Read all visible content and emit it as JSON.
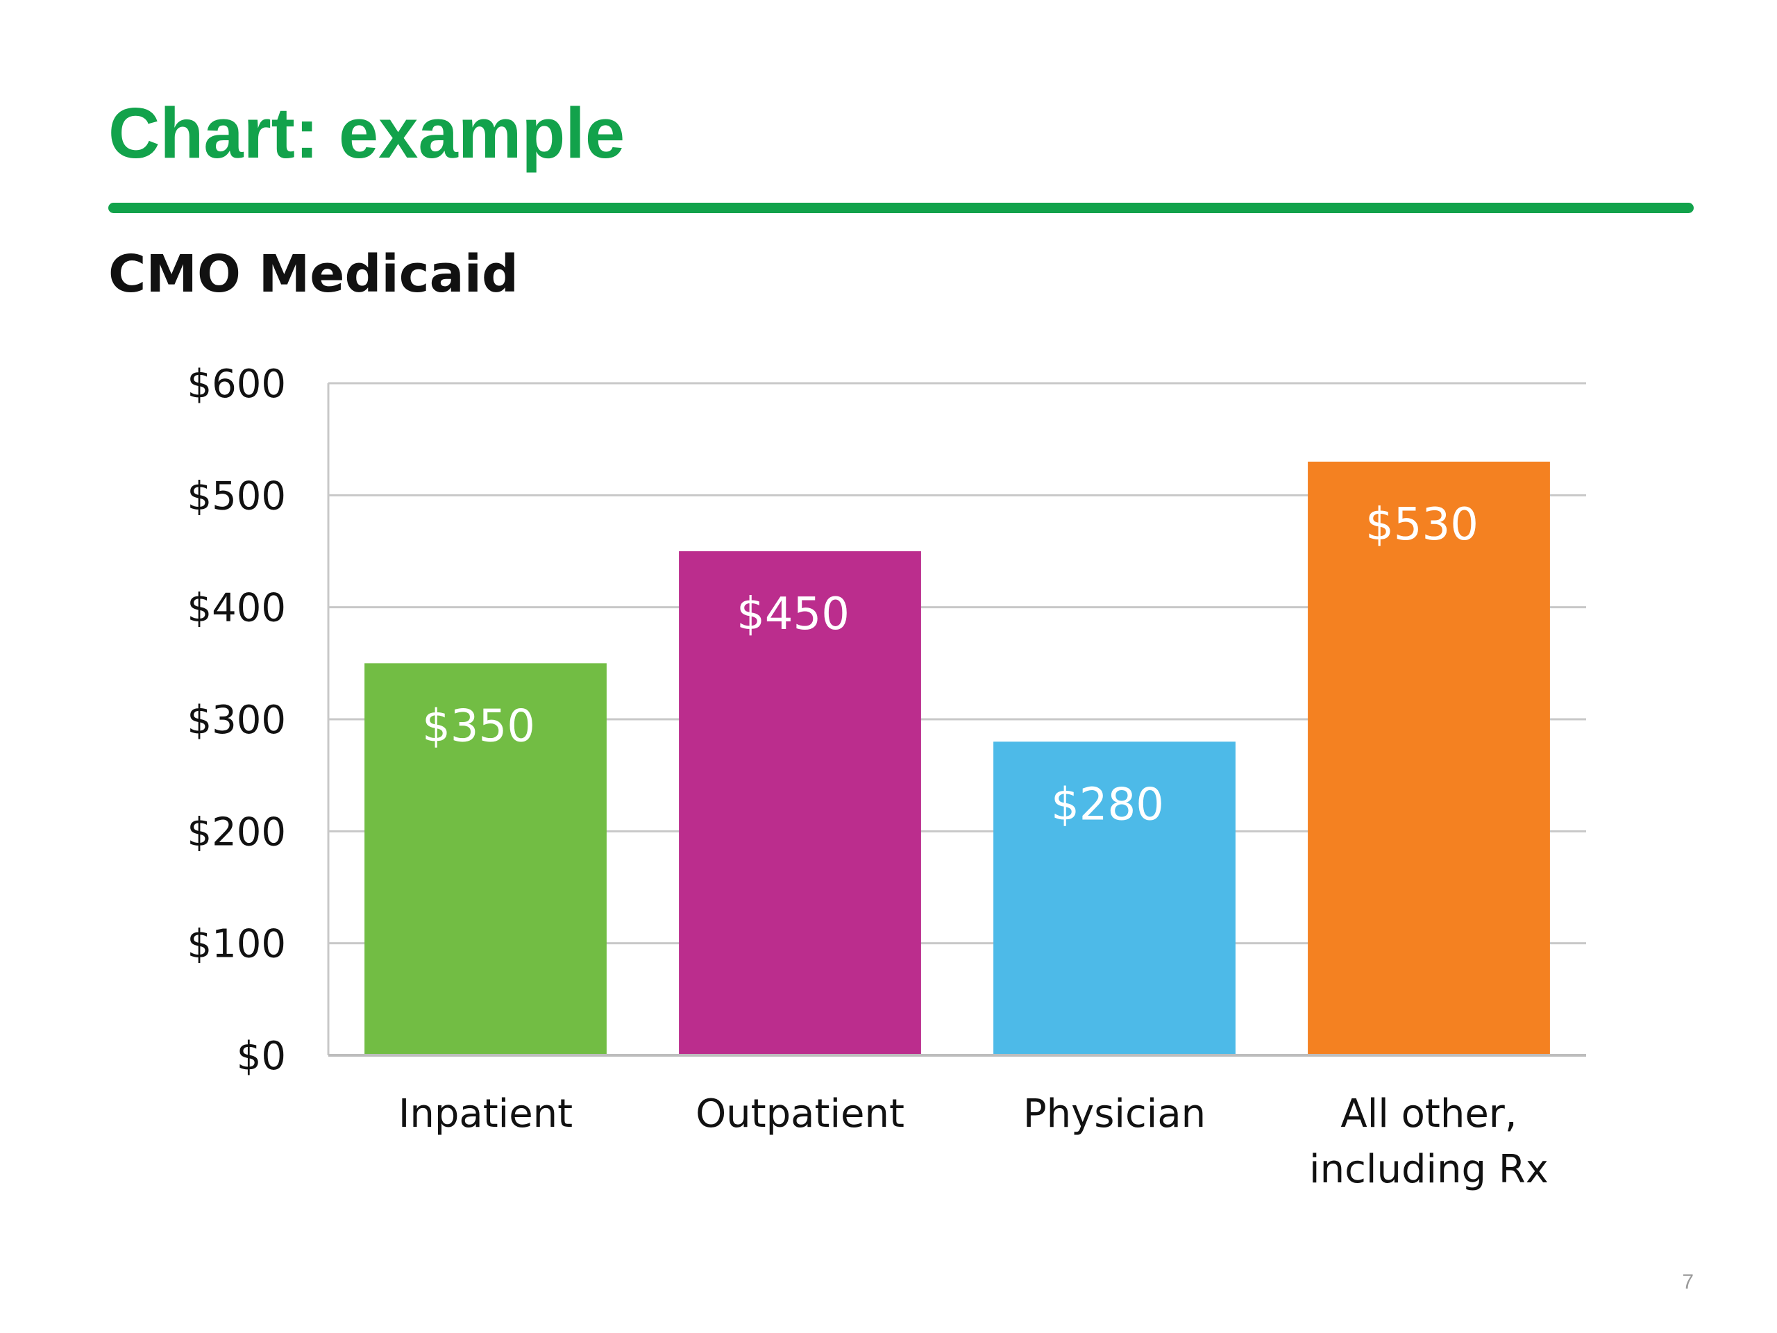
{
  "slide": {
    "title": "Chart: example",
    "subtitle": "CMO Medicaid",
    "page_number": "7",
    "accent_color": "#12a24b"
  },
  "chart_data": {
    "type": "bar",
    "title": "",
    "xlabel": "",
    "ylabel": "",
    "categories": [
      [
        "Inpatient"
      ],
      [
        "Outpatient"
      ],
      [
        "Physician"
      ],
      [
        "All other,",
        "including Rx"
      ]
    ],
    "values": [
      350,
      450,
      280,
      530
    ],
    "data_labels": [
      "$350",
      "$450",
      "$280",
      "$530"
    ],
    "colors": [
      "#72bd44",
      "#bb2d8d",
      "#4dbae8",
      "#f48121"
    ],
    "ylim": [
      0,
      600
    ],
    "yticks": [
      0,
      100,
      200,
      300,
      400,
      500,
      600
    ],
    "ytick_labels": [
      "$0",
      "$100",
      "$200",
      "$300",
      "$400",
      "$500",
      "$600"
    ],
    "grid": true,
    "legend": "none"
  }
}
